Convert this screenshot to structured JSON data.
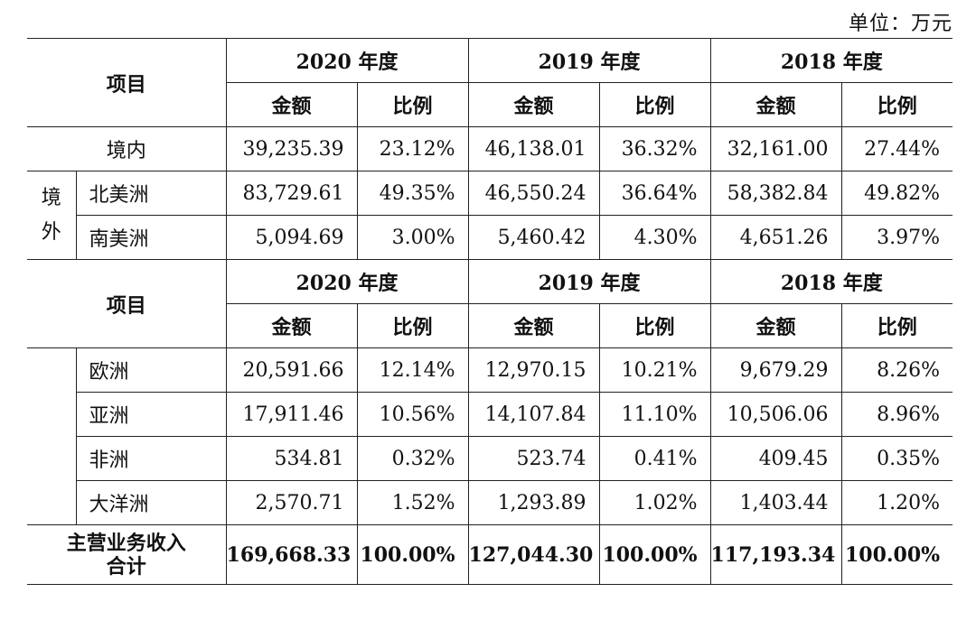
{
  "unit_label": "单位：万元",
  "headers": {
    "item": "项目",
    "years": [
      "2020 年度",
      "2019 年度",
      "2018 年度"
    ],
    "amount": "金额",
    "ratio": "比例"
  },
  "domestic": {
    "label": "境内",
    "values": [
      "39,235.39",
      "23.12%",
      "46,138.01",
      "36.32%",
      "32,161.00",
      "27.44%"
    ]
  },
  "overseas_chars": [
    "境",
    "外"
  ],
  "regions_top": [
    {
      "name": "北美洲",
      "values": [
        "83,729.61",
        "49.35%",
        "46,550.24",
        "36.64%",
        "58,382.84",
        "49.82%"
      ]
    },
    {
      "name": "南美洲",
      "values": [
        "5,094.69",
        "3.00%",
        "5,460.42",
        "4.30%",
        "4,651.26",
        "3.97%"
      ]
    }
  ],
  "regions_bottom": [
    {
      "name": "欧洲",
      "values": [
        "20,591.66",
        "12.14%",
        "12,970.15",
        "10.21%",
        "9,679.29",
        "8.26%"
      ]
    },
    {
      "name": "亚洲",
      "values": [
        "17,911.46",
        "10.56%",
        "14,107.84",
        "11.10%",
        "10,506.06",
        "8.96%"
      ]
    },
    {
      "name": "非洲",
      "values": [
        "534.81",
        "0.32%",
        "523.74",
        "0.41%",
        "409.45",
        "0.35%"
      ]
    },
    {
      "name": "大洋洲",
      "values": [
        "2,570.71",
        "1.52%",
        "1,293.89",
        "1.02%",
        "1,403.44",
        "1.20%"
      ]
    }
  ],
  "total": {
    "label_lines": [
      "主营业务收入",
      "合计"
    ],
    "values": [
      "169,668.33",
      "100.00%",
      "127,044.30",
      "100.00%",
      "117,193.34",
      "100.00%"
    ]
  }
}
